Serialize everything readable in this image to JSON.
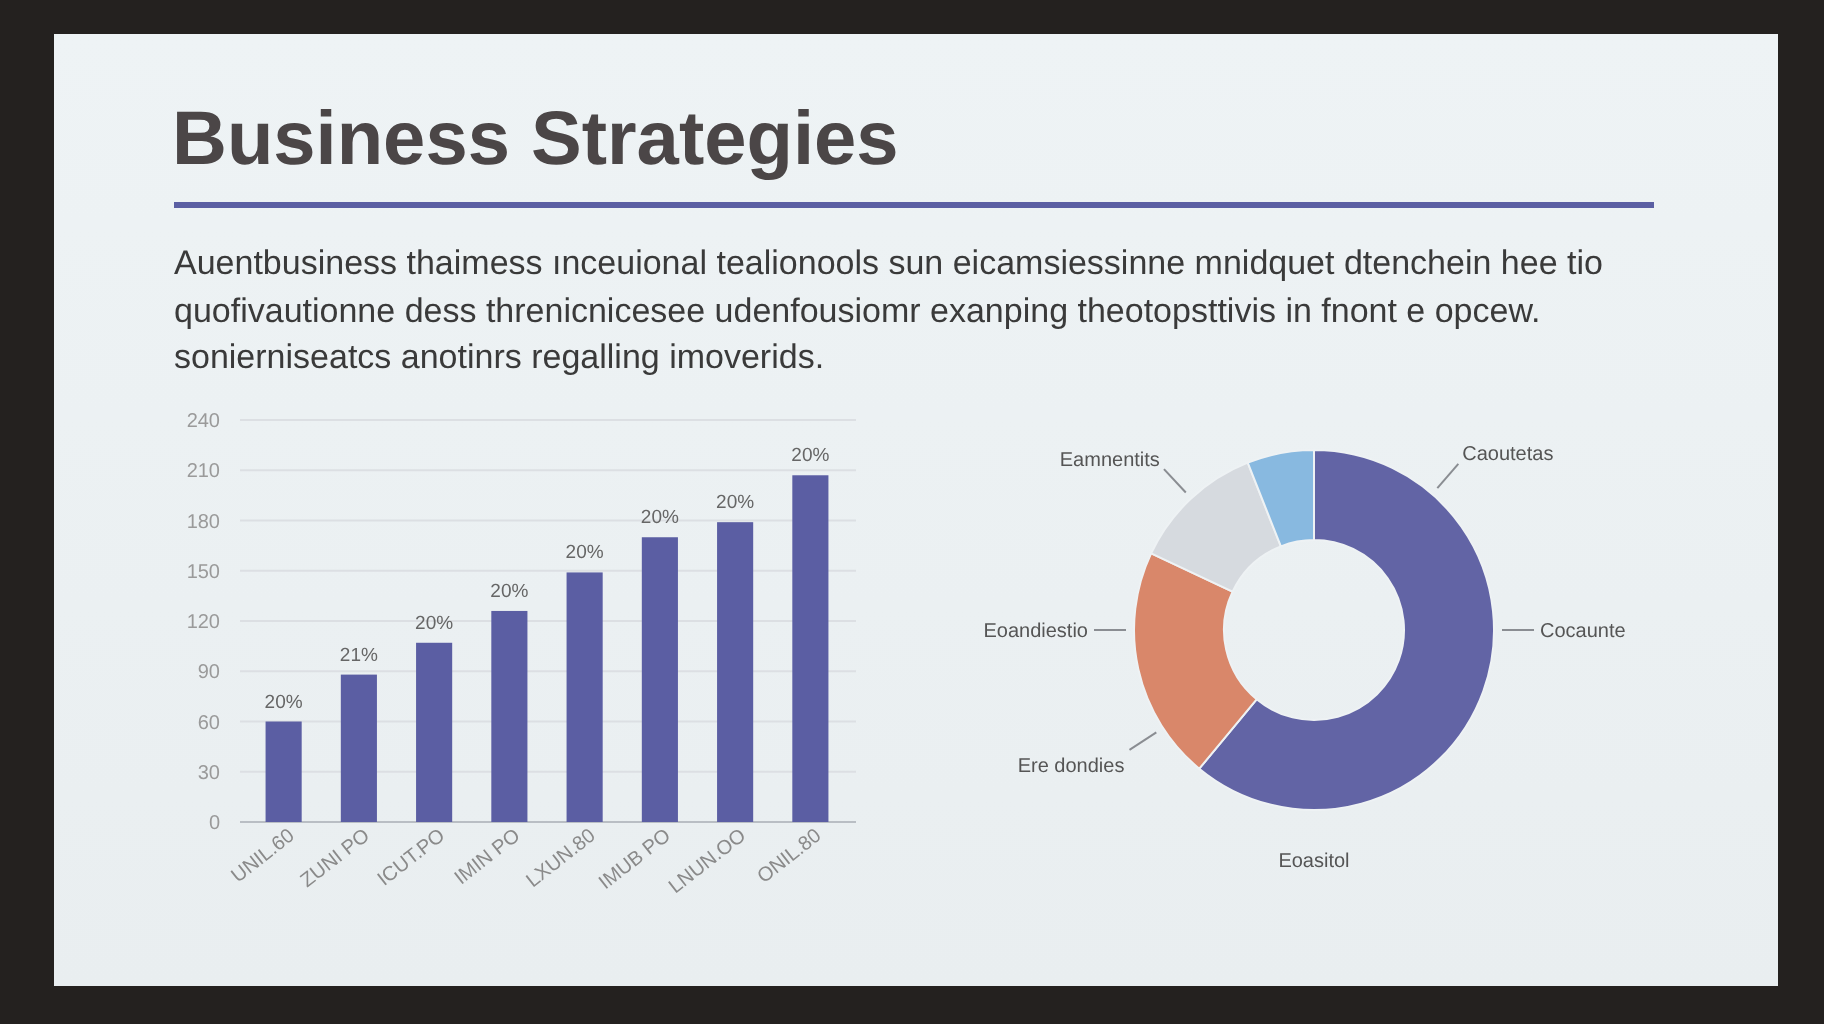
{
  "chart_data": [
    {
      "type": "bar",
      "title": "Business Strategies",
      "subtitle": "Auentbusiness thaimess ınceuional tealionools sun eicamsiessinne mnidquet dtenchein hee tio quofivautionne dess threnicnicesee udenfousiomr exanping theotopsttivis in fnont e opcew. sonierniseatcs anotinrs regalling imoverids.",
      "categories": [
        "UNIL.60",
        "ZUNI PO",
        "ICUT.PO",
        "IMIN PO",
        "LXUN.80",
        "IMUB PO",
        "LNUN.OO",
        "ONIL.80"
      ],
      "values": [
        60,
        88,
        107,
        126,
        149,
        170,
        179,
        207
      ],
      "annotations": [
        {
          "text": "20%",
          "x": "UNIL.60",
          "y": 60
        },
        {
          "text": "21%",
          "x": "ZUNI PO",
          "y": 88
        },
        {
          "text": "20%",
          "x": "ICUT.PO",
          "y": 107
        },
        {
          "text": "20%",
          "x": "IMIN PO",
          "y": 126
        },
        {
          "text": "20%",
          "x": "LXUN.80",
          "y": 149
        },
        {
          "text": "20%",
          "x": "IMUB PO",
          "y": 170
        },
        {
          "text": "20%",
          "x": "LNUN.OO",
          "y": 179
        },
        {
          "text": "20%",
          "x": "ONIL.80",
          "y": 207
        }
      ],
      "color": "#5b5ea3",
      "ylim": [
        0,
        240
      ],
      "yticks": [
        0,
        30,
        60,
        90,
        120,
        150,
        180,
        210,
        240
      ],
      "grid": "y"
    },
    {
      "type": "donut",
      "categories": [
        "Cocaunte",
        "Eoandiestio",
        "Eamnentits",
        null
      ],
      "values": [
        61,
        21,
        12,
        6
      ],
      "colors": [
        "#6264a5",
        "#d9876a",
        "#d6dadf",
        "#88b9e0"
      ],
      "annotations": [
        "Caoutetas",
        "Ere dondies",
        "Eoasitol"
      ]
    }
  ]
}
